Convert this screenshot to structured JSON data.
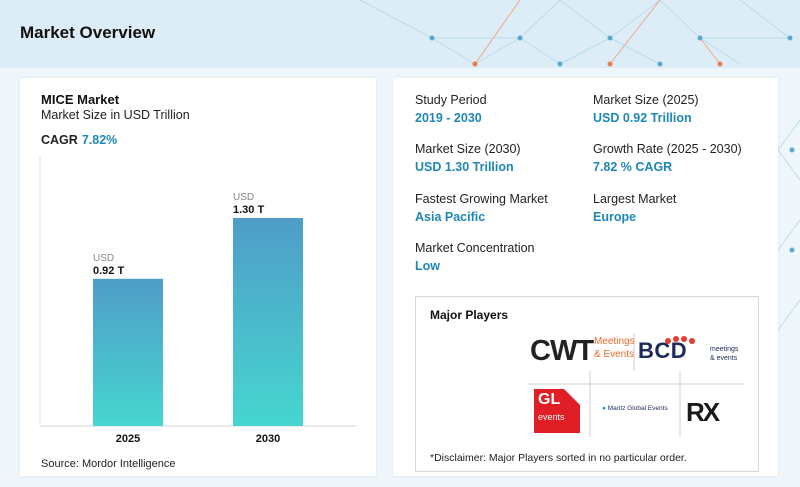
{
  "page_title": "Market Overview",
  "chart_data": {
    "type": "bar",
    "title": "MICE Market",
    "subtitle": "Market Size in USD Trillion",
    "cagr_label": "CAGR",
    "cagr_value": "7.82%",
    "categories": [
      "2025",
      "2030"
    ],
    "values": [
      0.92,
      1.3
    ],
    "value_prefix": "USD",
    "data_labels": [
      "0.92 T",
      "1.30 T"
    ],
    "ylim": [
      0,
      1.5
    ],
    "xlabel": "",
    "ylabel": "",
    "grid": false,
    "bar_color_top": "#4f9dc8",
    "bar_color_bottom": "#46d6cf"
  },
  "source": "Source: Mordor Intelligence",
  "stats": {
    "study_period": {
      "label": "Study Period",
      "value": "2019 - 2030"
    },
    "market_size_2025": {
      "label": "Market Size (2025)",
      "value": "USD 0.92 Trillion"
    },
    "market_size_2030": {
      "label": "Market Size (2030)",
      "value": "USD 1.30 Trillion"
    },
    "growth_rate": {
      "label": "Growth Rate (2025 - 2030)",
      "value": "7.82 % CAGR"
    },
    "fastest_growing": {
      "label": "Fastest Growing Market",
      "value": "Asia Pacific"
    },
    "largest_market": {
      "label": "Largest Market",
      "value": "Europe"
    },
    "concentration": {
      "label": "Market Concentration",
      "value": "Low"
    }
  },
  "players": {
    "title": "Major Players",
    "disclaimer": "*Disclaimer: Major Players sorted in no particular order.",
    "logos": {
      "cwt": "CWT",
      "cwt_sub": "Meetings\n& Events",
      "bcd": "BCD",
      "bcd_sub": "meetings\n& events",
      "gl": "GL",
      "gl_sub": "events",
      "maritz": "Maritz Global Events",
      "rx": "RX"
    }
  },
  "colors": {
    "accent": "#1f87b6",
    "header_band": "#dcedf7",
    "cwt_orange": "#e9692c",
    "gl_red": "#e01e25",
    "bcd_navy": "#1d2a5a"
  }
}
